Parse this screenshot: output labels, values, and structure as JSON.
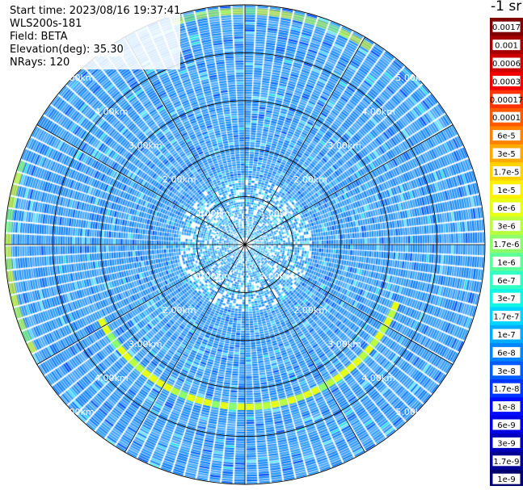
{
  "header": {
    "start_time": "Start time: 2023/08/16 19:37:41",
    "instrument": "WLS200s-181",
    "field": "Field: BETA",
    "elevation": "Elevation(deg): 35.30",
    "nrays": "NRays: 120"
  },
  "colorbar": {
    "title": "-1 sr",
    "ticks": [
      "0.0017",
      "0.001",
      "0.0006",
      "0.0003",
      "0.00017",
      "0.0001",
      "6e-5",
      "3e-5",
      "1.7e-5",
      "1e-5",
      "6e-6",
      "3e-6",
      "1.7e-6",
      "1e-6",
      "6e-7",
      "3e-7",
      "1.7e-7",
      "1e-7",
      "6e-8",
      "3e-8",
      "1.7e-8",
      "1e-8",
      "6e-9",
      "3e-9",
      "1.7e-9",
      "1e-9"
    ],
    "colors": [
      "#7f0000",
      "#a50000",
      "#cc0000",
      "#f20000",
      "#ff3300",
      "#ff5a00",
      "#ff8200",
      "#ffaa00",
      "#ffd200",
      "#fff000",
      "#e6ff12",
      "#b9ff3d",
      "#8cff6a",
      "#5fff97",
      "#32ffc4",
      "#12f4e4",
      "#00d4ff",
      "#00acff",
      "#0084ff",
      "#005cff",
      "#0034ff",
      "#000cff",
      "#0000e4",
      "#0000bc",
      "#000094",
      "#00006c"
    ]
  },
  "chart_data": {
    "type": "heatmap",
    "projection": "polar (PPI scan)",
    "n_rays": 120,
    "range_rings_km": [
      1,
      2,
      3,
      4,
      5
    ],
    "range_labels": [
      "1.00km",
      "2.00km",
      "3.00km",
      "4.00km",
      "5.00km"
    ],
    "max_range_km": 5.0,
    "variable": "BETA",
    "dominant_value_range": [
      "1e-7",
      "1.7e-7"
    ],
    "enhanced_arc_value": "1.7e-6",
    "enhanced_arc_range_km": 4.9
  }
}
